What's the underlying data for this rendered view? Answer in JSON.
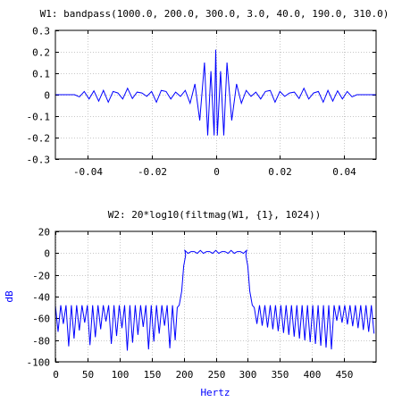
{
  "chart_data": [
    {
      "type": "line",
      "title": "W1: bandpass(1000.0, 200.0, 300.0, 3.0, 40.0, 190.0, 310.0)",
      "xlabel": "",
      "ylabel": "",
      "xlim": [
        -0.05,
        0.05
      ],
      "ylim": [
        -0.3,
        0.3
      ],
      "grid": true,
      "legend": "none",
      "xticks": [
        -0.04,
        -0.02,
        0,
        0.02,
        0.04
      ],
      "xtick_labels": [
        "-0.04",
        "-0.02",
        "0",
        "0.02",
        "0.04"
      ],
      "yticks": [
        0.3,
        0.2,
        0.1,
        0,
        -0.1,
        -0.2,
        -0.3
      ],
      "ytick_labels": [
        "0.3",
        "0.2",
        "0.1",
        "0",
        "-0.1",
        "-0.2",
        "-0.3"
      ],
      "series_color": "#0000ff",
      "series": [
        {
          "x": [
            -0.05,
            -0.048,
            -0.046,
            -0.044,
            -0.0425,
            -0.041,
            -0.0395,
            -0.038,
            -0.0365,
            -0.035,
            -0.0335,
            -0.032,
            -0.0305,
            -0.029,
            -0.0275,
            -0.026,
            -0.0245,
            -0.023,
            -0.0215,
            -0.02,
            -0.0185,
            -0.017,
            -0.0155,
            -0.014,
            -0.0125,
            -0.011,
            -0.0095,
            -0.008,
            -0.0065,
            -0.005,
            -0.0035,
            -0.0025,
            -0.0015,
            -0.0005,
            0,
            0.0005,
            0.0015,
            0.0025,
            0.0035,
            0.005,
            0.0065,
            0.008,
            0.0095,
            0.011,
            0.0125,
            0.014,
            0.0155,
            0.017,
            0.0185,
            0.02,
            0.0215,
            0.023,
            0.0245,
            0.026,
            0.0275,
            0.029,
            0.0305,
            0.032,
            0.0335,
            0.035,
            0.0365,
            0.038,
            0.0395,
            0.041,
            0.0425,
            0.044,
            0.046,
            0.048,
            0.05
          ],
          "y": [
            0,
            0,
            0,
            0,
            -0.01,
            0.015,
            -0.02,
            0.018,
            -0.03,
            0.02,
            -0.035,
            0.015,
            0.008,
            -0.02,
            0.03,
            -0.018,
            0.012,
            0.008,
            -0.008,
            0.015,
            -0.035,
            0.02,
            0.015,
            -0.02,
            0.012,
            -0.008,
            0.02,
            -0.04,
            0.05,
            -0.12,
            0.15,
            -0.19,
            0.11,
            -0.19,
            0.21,
            -0.19,
            0.11,
            -0.19,
            0.15,
            -0.12,
            0.05,
            -0.04,
            0.02,
            -0.008,
            0.012,
            -0.02,
            0.015,
            0.02,
            -0.035,
            0.015,
            -0.008,
            0.008,
            0.012,
            -0.018,
            0.03,
            -0.02,
            0.008,
            0.015,
            -0.035,
            0.02,
            -0.03,
            0.018,
            -0.02,
            0.015,
            -0.01,
            0,
            0,
            0,
            0
          ]
        }
      ]
    },
    {
      "type": "line",
      "title": "W2: 20*log10(filtmag(W1, {1}, 1024))",
      "xlabel": "Hertz",
      "ylabel": "dB",
      "xlim": [
        0,
        500
      ],
      "ylim": [
        -100,
        20
      ],
      "grid": true,
      "legend": "none",
      "xticks": [
        0,
        50,
        100,
        150,
        200,
        250,
        300,
        350,
        400,
        450
      ],
      "xtick_labels": [
        "0",
        "50",
        "100",
        "150",
        "200",
        "250",
        "300",
        "350",
        "400",
        "450"
      ],
      "yticks": [
        20,
        0,
        -20,
        -40,
        -60,
        -80,
        -100
      ],
      "ytick_labels": [
        "20",
        "0",
        "-20",
        "-40",
        "-60",
        "-80",
        "-100"
      ],
      "series_color": "#0000ff",
      "label_color": "#0000ff",
      "series": [
        {
          "stopband_level_db": -48,
          "notch_depth_db": [
            -90,
            -62
          ],
          "stopband_lobe_spacing_hz": 8.3,
          "passband_hz": [
            202,
            298
          ],
          "passband_ripple_db": [
            0,
            3
          ],
          "transition_points": [
            {
              "x": 190,
              "y": -50
            },
            {
              "x": 193,
              "y": -48
            },
            {
              "x": 197,
              "y": -35
            },
            {
              "x": 200,
              "y": -12
            },
            {
              "x": 203,
              "y": -2
            },
            {
              "x": 297,
              "y": -2
            },
            {
              "x": 300,
              "y": -12
            },
            {
              "x": 303,
              "y": -35
            },
            {
              "x": 307,
              "y": -48
            },
            {
              "x": 310,
              "y": -50
            }
          ]
        }
      ]
    }
  ]
}
